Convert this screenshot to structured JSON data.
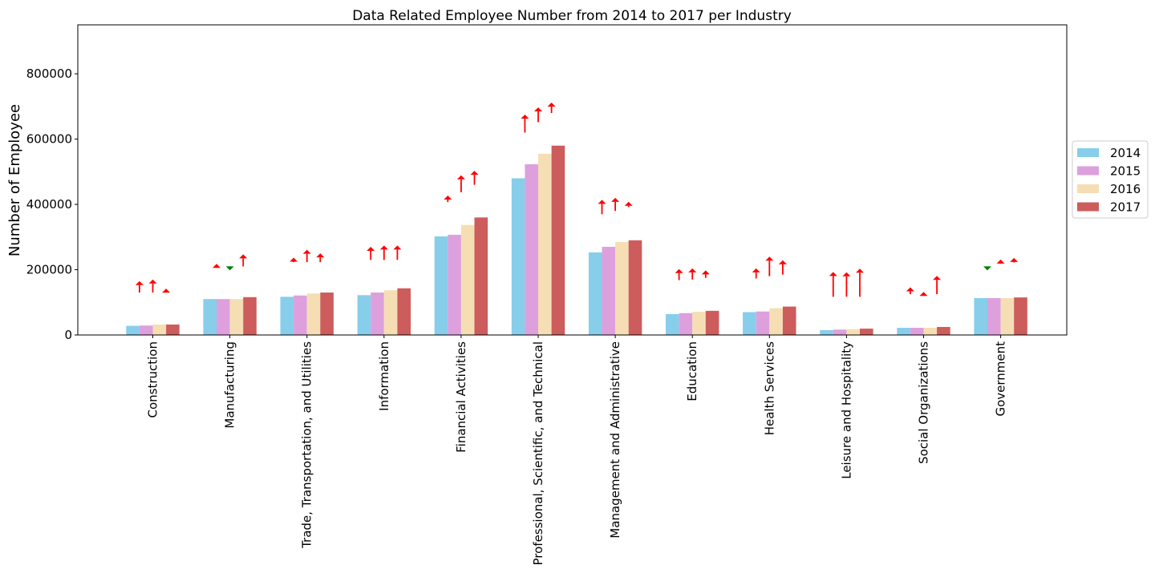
{
  "chart_data": {
    "type": "bar",
    "title": "Data Related Employee Number from 2014 to 2017 per Industry",
    "xlabel": "",
    "ylabel": "Number of Employee",
    "ylim": [
      0,
      950000
    ],
    "yticks": [
      0,
      200000,
      400000,
      600000,
      800000
    ],
    "grid": false,
    "legend_position": "right",
    "categories": [
      "Construction",
      "Manufacturing",
      "Trade, Transportation, and Utilities",
      "Information",
      "Financial Activities",
      "Professional, Scientific, and Technical",
      "Management and Administrative",
      "Education",
      "Health Services",
      "Leisure and Hospitality",
      "Social Organizations",
      "Government"
    ],
    "series": [
      {
        "name": "2014",
        "color": "#87ceeb",
        "values": [
          28000,
          110000,
          117000,
          122000,
          302000,
          480000,
          253000,
          64000,
          70000,
          15000,
          22000,
          113000
        ]
      },
      {
        "name": "2015",
        "color": "#dda0dd",
        "values": [
          29000,
          110000,
          121000,
          130000,
          307000,
          523000,
          270000,
          67000,
          72000,
          16500,
          22000,
          113000
        ]
      },
      {
        "name": "2016",
        "color": "#f5deb3",
        "values": [
          32000,
          110000,
          127000,
          137000,
          337000,
          555000,
          285000,
          71000,
          82000,
          17500,
          22000,
          113000
        ]
      },
      {
        "name": "2017",
        "color": "#cd5c5c",
        "values": [
          32000,
          116000,
          130000,
          143000,
          360000,
          580000,
          290000,
          74000,
          87000,
          19500,
          24500,
          115000
        ]
      }
    ],
    "change_arrows": {
      "up_color": "#ff0000",
      "down_color": "#008000",
      "items": [
        [
          {
            "from": 130000,
            "to": 165000
          },
          {
            "from": 130000,
            "to": 170000
          },
          {
            "from": 130000,
            "to": 142000
          }
        ],
        [
          {
            "from": 210000,
            "to": 218000
          },
          {
            "from": 210000,
            "to": 198000
          },
          {
            "from": 210000,
            "to": 247000
          }
        ],
        [
          {
            "from": 223000,
            "to": 237000
          },
          {
            "from": 223000,
            "to": 261000
          },
          {
            "from": 223000,
            "to": 250000
          }
        ],
        [
          {
            "from": 230000,
            "to": 270000
          },
          {
            "from": 230000,
            "to": 274000
          },
          {
            "from": 230000,
            "to": 274000
          }
        ],
        [
          {
            "from": 407000,
            "to": 427000
          },
          {
            "from": 437000,
            "to": 489000
          },
          {
            "from": 460000,
            "to": 503000
          }
        ],
        [
          {
            "from": 620000,
            "to": 675000
          },
          {
            "from": 652000,
            "to": 697000
          },
          {
            "from": 680000,
            "to": 712000
          }
        ],
        [
          {
            "from": 370000,
            "to": 414000
          },
          {
            "from": 380000,
            "to": 420000
          },
          {
            "from": 392000,
            "to": 408000
          }
        ],
        [
          {
            "from": 168000,
            "to": 202000
          },
          {
            "from": 170000,
            "to": 204000
          },
          {
            "from": 175000,
            "to": 198000
          }
        ],
        [
          {
            "from": 173000,
            "to": 204000
          },
          {
            "from": 180000,
            "to": 240000
          },
          {
            "from": 185000,
            "to": 229000
          }
        ],
        [
          {
            "from": 117000,
            "to": 193000
          },
          {
            "from": 117000,
            "to": 192000
          },
          {
            "from": 117000,
            "to": 203000
          }
        ],
        [
          {
            "from": 125000,
            "to": 146000
          },
          {
            "from": 121000,
            "to": 132000
          },
          {
            "from": 125000,
            "to": 181000
          }
        ],
        [
          {
            "from": 210000,
            "to": 198000
          },
          {
            "from": 218000,
            "to": 231000
          },
          {
            "from": 222000,
            "to": 236000
          }
        ]
      ]
    }
  }
}
